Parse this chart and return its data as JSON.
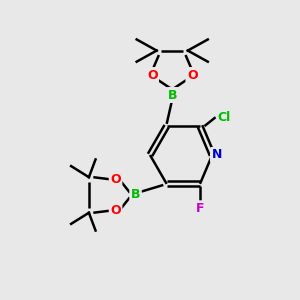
{
  "bg_color": "#e8e8e8",
  "bond_color": "#000000",
  "atom_colors": {
    "N": "#0000cc",
    "O": "#ff0000",
    "B": "#00bb00",
    "Cl": "#00bb00",
    "F": "#cc00cc"
  },
  "bond_width": 1.8,
  "font_size": 9
}
